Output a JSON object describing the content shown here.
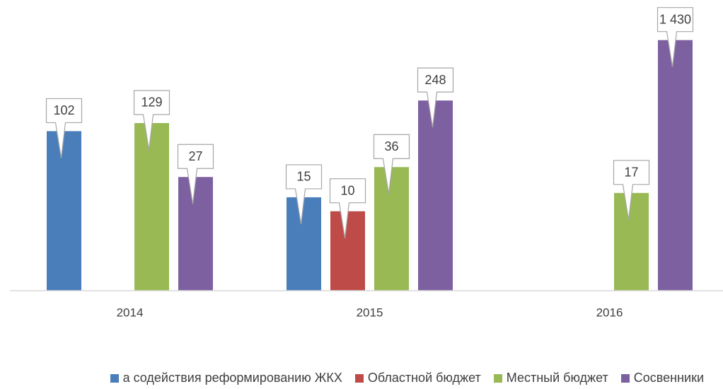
{
  "chart_data": {
    "type": "bar",
    "categories": [
      "2014",
      "2015",
      "2016"
    ],
    "log_scale": true,
    "ylim": [
      1,
      4000
    ],
    "legend": "bottom",
    "series": [
      {
        "name": "а содействия реформированию ЖКХ",
        "color": "#4a7ebb",
        "values": [
          102,
          15,
          null
        ]
      },
      {
        "name": "Областной бюджет",
        "color": "#be4b48",
        "values": [
          null,
          10,
          null
        ]
      },
      {
        "name": "Местный бюджет",
        "color": "#98b954",
        "values": [
          129,
          36,
          17
        ]
      },
      {
        "name": "Сосвенники",
        "color": "#7d60a0",
        "values": [
          27,
          248,
          1430
        ],
        "value_labels": [
          "27",
          "248",
          "1 430"
        ]
      }
    ]
  }
}
